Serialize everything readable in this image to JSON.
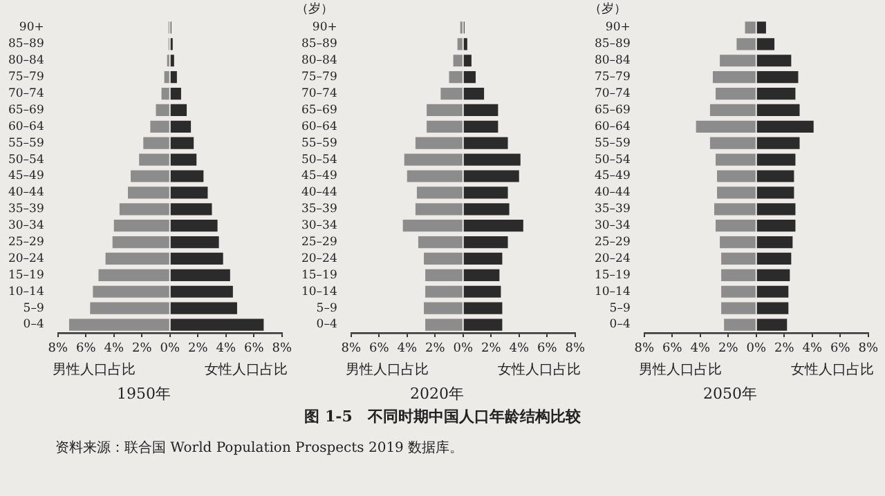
{
  "chart_data": [
    {
      "type": "bar",
      "orientation": "horizontal",
      "stacked": true,
      "title": "1950年",
      "categories": [
        "90+",
        "85–89",
        "80–84",
        "75–79",
        "70–74",
        "65–69",
        "60–64",
        "55–59",
        "50–54",
        "45–49",
        "40–44",
        "35–39",
        "30–34",
        "25–29",
        "20–24",
        "15–19",
        "10–14",
        "5–9",
        "0–4"
      ],
      "series": [
        {
          "name": "男性人口占比",
          "color": "#8c8c8c",
          "values": [
            -0.1,
            -0.1,
            -0.2,
            -0.4,
            -0.6,
            -1.0,
            -1.4,
            -1.9,
            -2.2,
            -2.8,
            -3.0,
            -3.6,
            -4.0,
            -4.1,
            -4.6,
            -5.1,
            -5.5,
            -5.7,
            -7.2
          ]
        },
        {
          "name": "女性人口占比",
          "color": "#2b2b2b",
          "values": [
            0.1,
            0.2,
            0.3,
            0.5,
            0.8,
            1.2,
            1.5,
            1.7,
            1.9,
            2.4,
            2.7,
            3.0,
            3.4,
            3.5,
            3.8,
            4.3,
            4.5,
            4.8,
            6.7
          ]
        }
      ],
      "xlim": [
        -8,
        8
      ],
      "xticks": [
        {
          "value": -8,
          "label": "8%"
        },
        {
          "value": -6,
          "label": "6%"
        },
        {
          "value": -4,
          "label": "4%"
        },
        {
          "value": -2,
          "label": "2%"
        },
        {
          "value": 0,
          "label": "0%"
        },
        {
          "value": 2,
          "label": "2%"
        },
        {
          "value": 4,
          "label": "4%"
        },
        {
          "value": 6,
          "label": "6%"
        },
        {
          "value": 8,
          "label": "8%"
        }
      ],
      "grid": false,
      "legend": false,
      "annotations": [
        "图 1-5　不同时期中国人口年龄结构比较",
        "资料来源：联合国 World Population Prospects 2019 数据库。"
      ]
    },
    {
      "type": "bar",
      "orientation": "horizontal",
      "stacked": true,
      "title": "2020年",
      "ylabel": "（岁）",
      "categories": [
        "90+",
        "85–89",
        "80–84",
        "75–79",
        "70–74",
        "65–69",
        "60–64",
        "55–59",
        "50–54",
        "45–49",
        "40–44",
        "35–39",
        "30–34",
        "25–29",
        "20–24",
        "15–19",
        "10–14",
        "5–9",
        "0–4"
      ],
      "series": [
        {
          "name": "男性人口占比",
          "color": "#8c8c8c",
          "values": [
            -0.2,
            -0.4,
            -0.7,
            -1.0,
            -1.6,
            -2.6,
            -2.6,
            -3.4,
            -4.2,
            -4.0,
            -3.3,
            -3.4,
            -4.3,
            -3.2,
            -2.8,
            -2.7,
            -2.7,
            -2.8,
            -2.7
          ]
        },
        {
          "name": "女性人口占比",
          "color": "#2b2b2b",
          "values": [
            0.1,
            0.3,
            0.6,
            0.9,
            1.5,
            2.5,
            2.5,
            3.2,
            4.1,
            4.0,
            3.2,
            3.3,
            4.3,
            3.2,
            2.8,
            2.6,
            2.7,
            2.8,
            2.8
          ]
        }
      ],
      "xlim": [
        -8,
        8
      ],
      "xticks": [
        {
          "value": -8,
          "label": "8%"
        },
        {
          "value": -6,
          "label": "6%"
        },
        {
          "value": -4,
          "label": "4%"
        },
        {
          "value": -2,
          "label": "2%"
        },
        {
          "value": 0,
          "label": "0%"
        },
        {
          "value": 2,
          "label": "2%"
        },
        {
          "value": 4,
          "label": "4%"
        },
        {
          "value": 6,
          "label": "6%"
        },
        {
          "value": 8,
          "label": "8%"
        }
      ],
      "grid": false,
      "legend": false
    },
    {
      "type": "bar",
      "orientation": "horizontal",
      "stacked": true,
      "title": "2050年",
      "ylabel": "（岁）",
      "categories": [
        "90+",
        "85–89",
        "80–84",
        "75–79",
        "70–74",
        "65–69",
        "60–64",
        "55–59",
        "50–54",
        "45–49",
        "40–44",
        "35–39",
        "30–34",
        "25–29",
        "20–24",
        "15–19",
        "10–14",
        "5–9",
        "0–4"
      ],
      "series": [
        {
          "name": "男性人口占比",
          "color": "#8c8c8c",
          "values": [
            -0.8,
            -1.4,
            -2.6,
            -3.1,
            -2.9,
            -3.3,
            -4.3,
            -3.3,
            -2.9,
            -2.8,
            -2.8,
            -3.0,
            -2.9,
            -2.6,
            -2.5,
            -2.5,
            -2.5,
            -2.5,
            -2.3
          ]
        },
        {
          "name": "女性人口占比",
          "color": "#2b2b2b",
          "values": [
            0.7,
            1.3,
            2.5,
            3.0,
            2.8,
            3.1,
            4.1,
            3.1,
            2.8,
            2.7,
            2.7,
            2.8,
            2.8,
            2.6,
            2.5,
            2.4,
            2.3,
            2.3,
            2.2
          ]
        }
      ],
      "xlim": [
        -8,
        8
      ],
      "xticks": [
        {
          "value": -8,
          "label": "8%"
        },
        {
          "value": -6,
          "label": "6%"
        },
        {
          "value": -4,
          "label": "4%"
        },
        {
          "value": -2,
          "label": "2%"
        },
        {
          "value": 0,
          "label": "0%"
        },
        {
          "value": 2,
          "label": "2%"
        },
        {
          "value": 4,
          "label": "4%"
        },
        {
          "value": 6,
          "label": "6%"
        },
        {
          "value": 8,
          "label": "8%"
        }
      ],
      "grid": false,
      "legend": false
    }
  ]
}
